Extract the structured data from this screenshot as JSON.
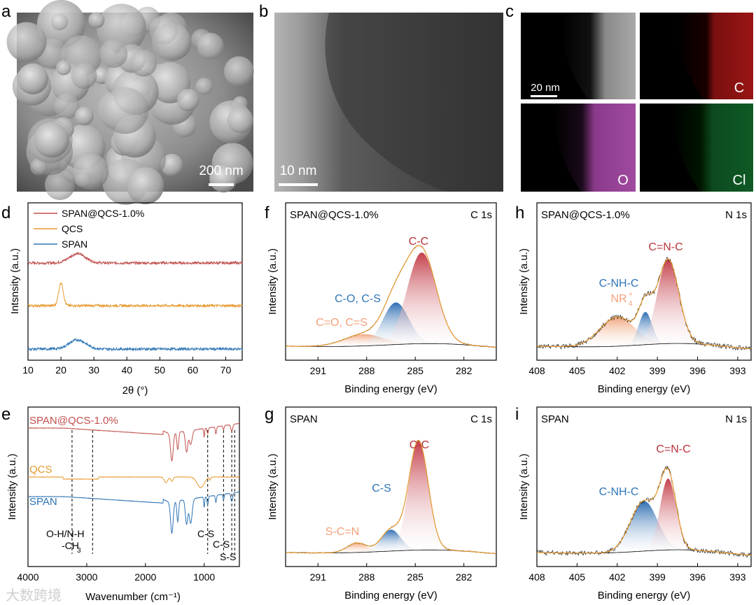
{
  "panels": {
    "a": {
      "label": "a",
      "scale_bar": "200 nm"
    },
    "b": {
      "label": "b",
      "scale_bar": "10 nm"
    },
    "c": {
      "label": "c",
      "scale_bar": "20 nm",
      "maps": [
        "",
        "C",
        "O",
        "Cl"
      ]
    },
    "d": {
      "label": "d"
    },
    "e": {
      "label": "e"
    },
    "f": {
      "label": "f"
    },
    "g": {
      "label": "g"
    },
    "h": {
      "label": "h"
    },
    "i": {
      "label": "i"
    }
  },
  "colors": {
    "span_qcs": "#c0504d",
    "qcs": "#e69a2e",
    "span": "#2e75b6",
    "envelope": "#e69a2e",
    "orange_peak_label": "#f4a07a",
    "blue_peak_label": "#2e75b6",
    "red_peak_label": "#b8323c"
  },
  "watermark": "大数跨境",
  "chart_data": [
    {
      "type": "line",
      "panel": "d",
      "xlabel": "2θ (°)",
      "ylabel": "Intsnsity (a.u.)",
      "xlim": [
        10,
        75
      ],
      "xticks": [
        "10",
        "20",
        "30",
        "40",
        "50",
        "60",
        "70"
      ],
      "legend": [
        "SPAN@QCS-1.0%",
        "QCS",
        "SPAN"
      ],
      "series": [
        {
          "name": "SPAN@QCS-1.0%",
          "offset": 2.0,
          "peaks": [
            {
              "x": 25,
              "h": 0.22,
              "w": 2.5
            }
          ]
        },
        {
          "name": "QCS",
          "offset": 1.0,
          "peaks": [
            {
              "x": 20,
              "h": 0.55,
              "w": 0.7
            }
          ]
        },
        {
          "name": "SPAN",
          "offset": 0.0,
          "peaks": [
            {
              "x": 25,
              "h": 0.22,
              "w": 2.5
            }
          ]
        }
      ]
    },
    {
      "type": "line",
      "panel": "e",
      "xlabel": "Wavenumber (cm⁻¹)",
      "ylabel": "Intensity (a.u.)",
      "xlim": [
        4000,
        400
      ],
      "xticks": [
        "4000",
        "3000",
        "2000",
        "1000"
      ],
      "series_labels": [
        "SPAN@QCS-1.0%",
        "QCS",
        "SPAN"
      ],
      "annotations": [
        "O-H/N-H",
        "-CH",
        "3",
        "C-S",
        "C-S",
        "S-S"
      ],
      "dashed_lines": [
        3250,
        2900,
        940,
        670,
        530,
        480
      ]
    },
    {
      "type": "area",
      "panel": "f",
      "title": "SPAN@QCS-1.0%",
      "region": "C 1s",
      "xlabel": "Binding energy (eV)",
      "ylabel": "Intensity (a.u.)",
      "xlim": [
        293,
        280
      ],
      "xticks": [
        "291",
        "288",
        "285",
        "282"
      ],
      "peaks": [
        {
          "label": "C-C",
          "center": 284.6,
          "height": 0.78,
          "width": 0.9,
          "color": "red"
        },
        {
          "label": "C-O, C-S",
          "center": 286.2,
          "height": 0.36,
          "width": 0.8,
          "color": "blue"
        },
        {
          "label": "C=O, C=S",
          "center": 288.2,
          "height": 0.1,
          "width": 1.2,
          "color": "orange"
        }
      ]
    },
    {
      "type": "area",
      "panel": "h",
      "title": "SPAN@QCS-1.0%",
      "region": "N 1s",
      "xlabel": "Binding energy (eV)",
      "ylabel": "Intensity (a.u.)",
      "xlim": [
        408,
        392
      ],
      "xticks": [
        "408",
        "405",
        "402",
        "399",
        "396",
        "393"
      ],
      "peaks": [
        {
          "label": "C=N-C",
          "center": 398.2,
          "height": 0.72,
          "width": 0.8,
          "color": "red"
        },
        {
          "label": "C-NH-C",
          "center": 399.9,
          "height": 0.28,
          "width": 0.5,
          "color": "blue"
        },
        {
          "label": "NR4+",
          "center": 402.0,
          "height": 0.25,
          "width": 1.3,
          "color": "orange"
        }
      ]
    },
    {
      "type": "area",
      "panel": "g",
      "title": "SPAN",
      "region": "C 1s",
      "xlabel": "Binding energy (eV)",
      "ylabel": "Intensity (a.u.)",
      "xlim": [
        293,
        280
      ],
      "xticks": [
        "291",
        "288",
        "285",
        "282"
      ],
      "peaks": [
        {
          "label": "C-C",
          "center": 284.8,
          "height": 0.92,
          "width": 0.6,
          "color": "red"
        },
        {
          "label": "C-S",
          "center": 286.5,
          "height": 0.18,
          "width": 0.6,
          "color": "blue"
        },
        {
          "label": "S-C=N",
          "center": 288.6,
          "height": 0.08,
          "width": 0.6,
          "color": "orange"
        }
      ]
    },
    {
      "type": "area",
      "panel": "i",
      "title": "SPAN",
      "region": "N 1s",
      "xlabel": "Binding energy (eV)",
      "ylabel": "Intensity (a.u.)",
      "xlim": [
        408,
        392
      ],
      "xticks": [
        "408",
        "405",
        "402",
        "399",
        "396",
        "393"
      ],
      "peaks": [
        {
          "label": "C=N-C",
          "center": 398.2,
          "height": 0.6,
          "width": 0.6,
          "color": "red"
        },
        {
          "label": "C-NH-C",
          "center": 400.0,
          "height": 0.42,
          "width": 1.0,
          "color": "blue"
        }
      ]
    }
  ]
}
